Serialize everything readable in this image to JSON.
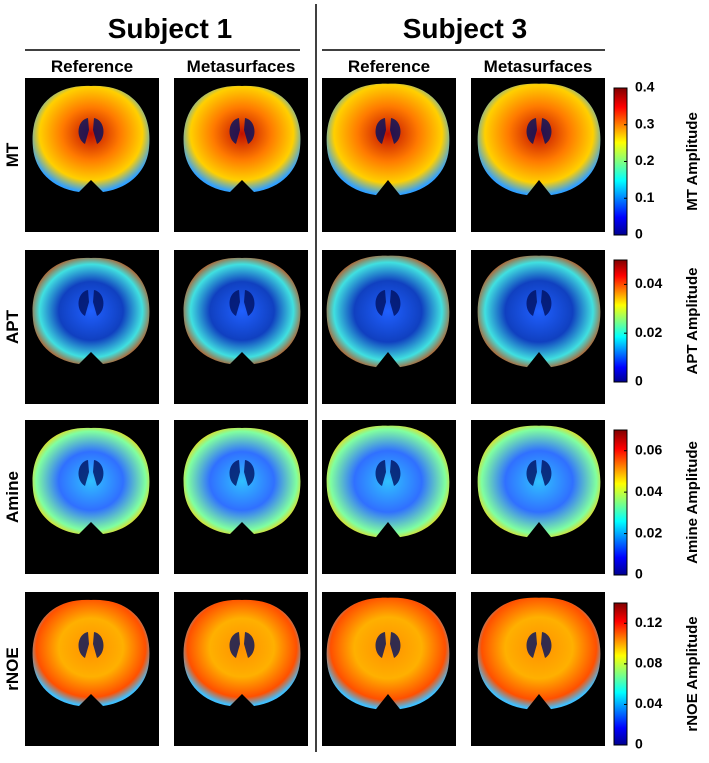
{
  "subjects": [
    "Subject 1",
    "Subject 3"
  ],
  "columns": [
    "Reference",
    "Metasurfaces",
    "Reference",
    "Metasurfaces"
  ],
  "rows": [
    {
      "label": "MT",
      "colorbar": {
        "label": "MT Amplitude",
        "range": [
          0,
          0.4
        ],
        "ticks": [
          0,
          0.1,
          0.2,
          0.3,
          0.4
        ]
      }
    },
    {
      "label": "APT",
      "colorbar": {
        "label": "APT Amplitude",
        "range": [
          0,
          0.05
        ],
        "ticks": [
          0,
          0.02,
          0.04
        ]
      }
    },
    {
      "label": "Amine",
      "colorbar": {
        "label": "Amine Amplitude",
        "range": [
          0,
          0.07
        ],
        "ticks": [
          0,
          0.02,
          0.04,
          0.06
        ]
      }
    },
    {
      "label": "rNOE",
      "colorbar": {
        "label": "rNOE Amplitude",
        "range": [
          0,
          0.14
        ],
        "ticks": [
          0,
          0.04,
          0.08,
          0.12
        ]
      }
    }
  ]
}
